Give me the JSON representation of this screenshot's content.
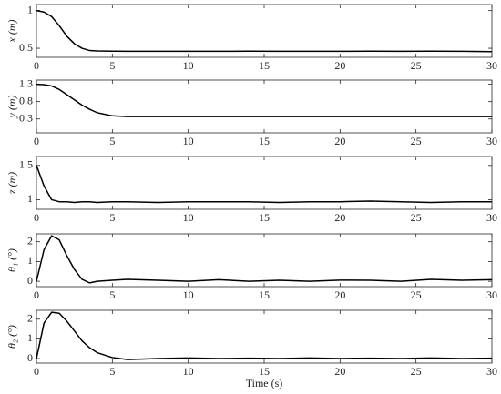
{
  "chart_data": [
    {
      "type": "line",
      "ylabel": "x (m)",
      "x": [
        0,
        0.5,
        1,
        1.5,
        2,
        2.5,
        3,
        3.5,
        4,
        5,
        6,
        8,
        10,
        12,
        14,
        16,
        18,
        20,
        22,
        24,
        26,
        28,
        30
      ],
      "series": [
        {
          "color": "#000000",
          "values": [
            1.0,
            0.98,
            0.92,
            0.8,
            0.66,
            0.56,
            0.5,
            0.47,
            0.465,
            0.462,
            0.46,
            0.46,
            0.46,
            0.46,
            0.461,
            0.46,
            0.46,
            0.46,
            0.461,
            0.46,
            0.462,
            0.46,
            0.455
          ]
        }
      ],
      "xlim": [
        0,
        30
      ],
      "xticks": [
        0,
        5,
        10,
        15,
        20,
        25,
        30
      ],
      "ylim": [
        0.38,
        1.08
      ],
      "yticks": [
        0.5,
        1
      ]
    },
    {
      "type": "line",
      "ylabel": "y (m)",
      "x": [
        0,
        0.5,
        1,
        1.5,
        2,
        2.5,
        3,
        3.5,
        4,
        5,
        6,
        8,
        10,
        12,
        14,
        16,
        18,
        20,
        22,
        24,
        26,
        28,
        30
      ],
      "series": [
        {
          "color": "#000000",
          "values": [
            1.3,
            1.29,
            1.25,
            1.15,
            1.0,
            0.85,
            0.7,
            0.58,
            0.48,
            0.39,
            0.37,
            0.37,
            0.37,
            0.37,
            0.37,
            0.37,
            0.37,
            0.37,
            0.37,
            0.37,
            0.37,
            0.37,
            0.37
          ]
        }
      ],
      "xlim": [
        0,
        30
      ],
      "xticks": [
        0,
        5,
        10,
        15,
        20,
        25,
        30
      ],
      "ylim": [
        -0.1,
        1.42
      ],
      "yticks": [
        0.3,
        0.8,
        1.3
      ]
    },
    {
      "type": "line",
      "ylabel": "z (m)",
      "x": [
        0,
        0.5,
        1,
        1.5,
        2,
        2.5,
        3,
        3.5,
        4,
        5,
        6,
        8,
        10,
        12,
        14,
        16,
        18,
        20,
        22,
        24,
        26,
        28,
        30
      ],
      "series": [
        {
          "color": "#000000",
          "values": [
            1.5,
            1.2,
            1.0,
            0.97,
            0.97,
            0.96,
            0.97,
            0.97,
            0.96,
            0.97,
            0.97,
            0.96,
            0.97,
            0.97,
            0.97,
            0.96,
            0.97,
            0.97,
            0.98,
            0.97,
            0.96,
            0.97,
            0.97
          ]
        }
      ],
      "xlim": [
        0,
        30
      ],
      "xticks": [
        0,
        5,
        10,
        15,
        20,
        25,
        30
      ],
      "ylim": [
        0.86,
        1.63
      ],
      "yticks": [
        1,
        1.5
      ]
    },
    {
      "type": "line",
      "ylabel": "θ₁ (°)",
      "x": [
        0,
        0.5,
        1,
        1.5,
        2,
        2.5,
        3,
        3.5,
        4,
        5,
        6,
        8,
        10,
        12,
        14,
        16,
        18,
        20,
        22,
        24,
        26,
        28,
        30
      ],
      "series": [
        {
          "color": "#000000",
          "values": [
            0,
            1.6,
            2.3,
            2.1,
            1.3,
            0.6,
            0.1,
            -0.08,
            0.0,
            0.05,
            0.1,
            0.05,
            0.0,
            0.08,
            0.0,
            0.05,
            0.0,
            0.06,
            0.05,
            0.0,
            0.1,
            0.05,
            0.08
          ]
        }
      ],
      "xlim": [
        0,
        30
      ],
      "xticks": [
        0,
        5,
        10,
        15,
        20,
        25,
        30
      ],
      "ylim": [
        -0.27,
        2.4
      ],
      "yticks": [
        0,
        1,
        2
      ]
    },
    {
      "type": "line",
      "ylabel": "θ₂ (°)",
      "xlabel": "Time (s)",
      "x": [
        0,
        0.5,
        1,
        1.5,
        2,
        2.5,
        3,
        3.5,
        4,
        5,
        6,
        8,
        10,
        12,
        14,
        16,
        18,
        20,
        22,
        24,
        26,
        28,
        30
      ],
      "series": [
        {
          "color": "#000000",
          "values": [
            0,
            1.8,
            2.35,
            2.3,
            1.9,
            1.4,
            0.9,
            0.55,
            0.3,
            0.05,
            -0.05,
            0.0,
            0.03,
            0.0,
            0.02,
            0.0,
            0.03,
            0.0,
            0.02,
            0.0,
            0.03,
            0.0,
            0.02
          ]
        }
      ],
      "xlim": [
        0,
        30
      ],
      "xticks": [
        0,
        5,
        10,
        15,
        20,
        25,
        30
      ],
      "ylim": [
        -0.23,
        2.45
      ],
      "yticks": [
        0,
        1,
        2
      ]
    }
  ]
}
